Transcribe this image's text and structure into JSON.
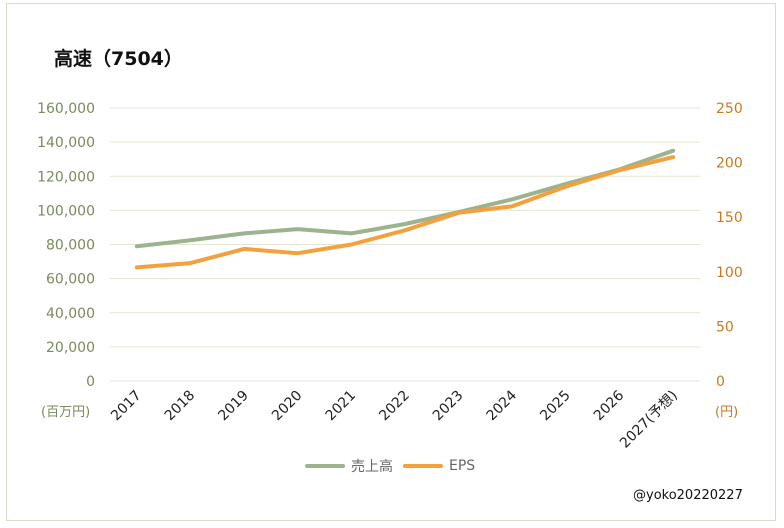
{
  "title": "高速（7504）",
  "credit": "@yoko20220227",
  "colors": {
    "sales": "#9db38e",
    "eps": "#f2a13e",
    "left_axis_text": "#7a8a5e",
    "right_axis_text": "#c87a1e",
    "grid": "#e3e6d4"
  },
  "chart_data": {
    "type": "line",
    "categories": [
      "2017",
      "2018",
      "2019",
      "2020",
      "2021",
      "2022",
      "2023",
      "2024",
      "2025",
      "2026",
      "2027(予想)"
    ],
    "series": [
      {
        "name": "売上高",
        "axis": "left",
        "values": [
          79000,
          82500,
          86500,
          89000,
          86500,
          92000,
          99000,
          106500,
          115500,
          124000,
          135000
        ]
      },
      {
        "name": "EPS",
        "axis": "right",
        "values": [
          104,
          108,
          121,
          117,
          125,
          138,
          154,
          160,
          178,
          193,
          205
        ]
      }
    ],
    "y_left": {
      "min": 0,
      "max": 160000,
      "ticks": [
        "0",
        "20,000",
        "40,000",
        "60,000",
        "80,000",
        "100,000",
        "120,000",
        "140,000",
        "160,000"
      ],
      "unit": "(百万円)"
    },
    "y_right": {
      "min": 0,
      "max": 250,
      "ticks": [
        "0",
        "50",
        "100",
        "150",
        "200",
        "250"
      ],
      "unit": "(円)"
    },
    "grid": true,
    "legend": "bottom"
  }
}
